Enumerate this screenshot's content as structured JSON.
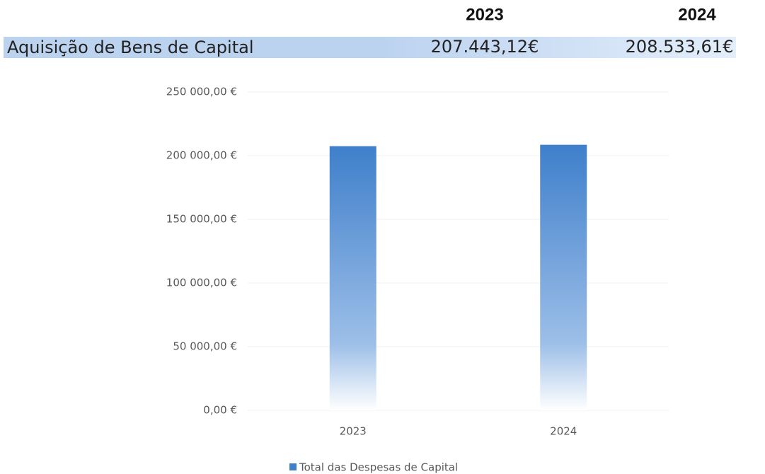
{
  "table": {
    "columns": [
      "2023",
      "2024"
    ],
    "rows": [
      [
        "Aquisição de Bens de Capital",
        "207.443,12€",
        "208.533,61€"
      ]
    ]
  },
  "chart_data": {
    "type": "bar",
    "categories": [
      "2023",
      "2024"
    ],
    "series": [
      {
        "name": "Total das Despesas de Capital",
        "color": "#3f7fcb",
        "values": [
          207443.12,
          208533.61
        ]
      }
    ],
    "ylim": [
      0,
      250000
    ],
    "yticks": [
      {
        "value": 0,
        "label": "0,00 €"
      },
      {
        "value": 50000,
        "label": "50 000,00 €"
      },
      {
        "value": 100000,
        "label": "100 000,00 €"
      },
      {
        "value": 150000,
        "label": "150 000,00 €"
      },
      {
        "value": 200000,
        "label": "200 000,00 €"
      },
      {
        "value": 250000,
        "label": "250 000,00 €"
      }
    ],
    "grid": true,
    "legend": "bottom"
  }
}
